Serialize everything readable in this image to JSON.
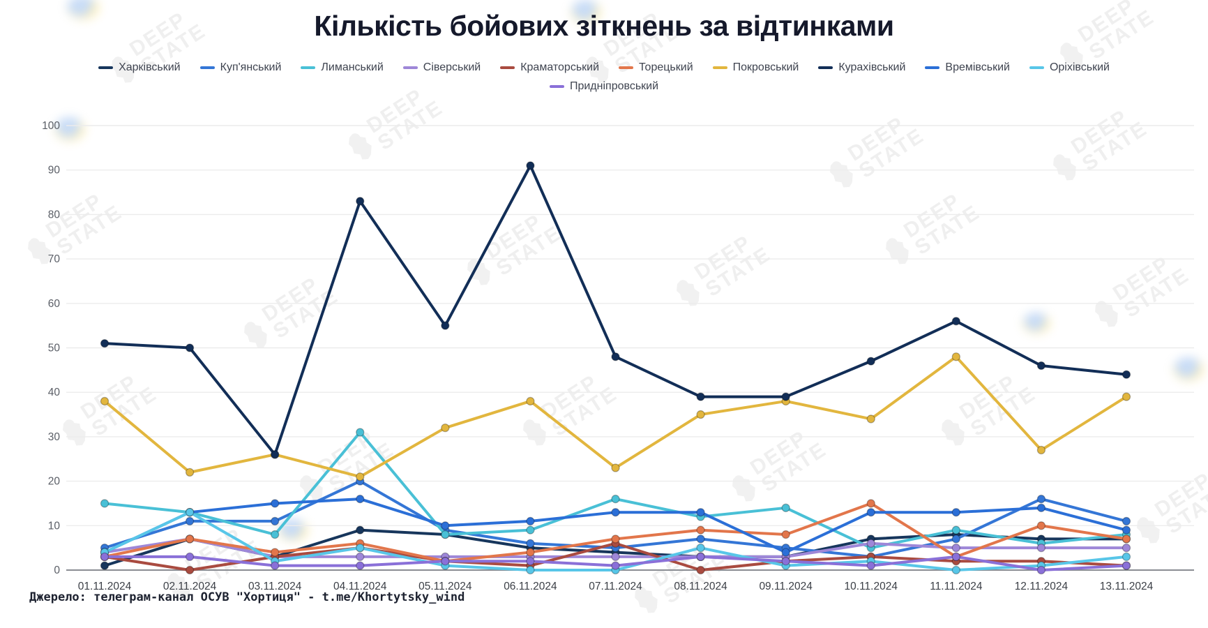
{
  "title": "Кількість бойових зіткнень за відтинками",
  "source": "Джерело: телеграм-канал ОСУВ \"Хортиця\" - t.me/Khortytsky_wind",
  "watermark": {
    "line1": "DEEP",
    "line2": "STATE"
  },
  "colors": {
    "axis": "#8a8d93",
    "grid": "#ececec",
    "ytick": "#5a5e66",
    "xtick": "#3b3f46"
  },
  "chart_data": {
    "type": "line",
    "title": "Кількість бойових зіткнень за відтинками",
    "xlabel": "",
    "ylabel": "",
    "ylim": [
      0,
      100
    ],
    "ytick_step": 10,
    "grid": true,
    "legend_position": "top",
    "x": [
      "01.11.2024",
      "02.11.2024",
      "03.11.2024",
      "04.11.2024",
      "05.11.2024",
      "06.11.2024",
      "07.11.2024",
      "08.11.2024",
      "09.11.2024",
      "10.11.2024",
      "11.11.2024",
      "12.11.2024",
      "13.11.2024"
    ],
    "series": [
      {
        "name": "Харківський",
        "color": "#17365c",
        "values": [
          1,
          7,
          3,
          9,
          8,
          5,
          4,
          3,
          3,
          7,
          8,
          7,
          7
        ]
      },
      {
        "name": "Куп'янський",
        "color": "#3476d6",
        "values": [
          5,
          11,
          11,
          20,
          9,
          6,
          5,
          7,
          5,
          3,
          7,
          16,
          11
        ]
      },
      {
        "name": "Лиманський",
        "color": "#49c0d6",
        "values": [
          15,
          13,
          8,
          31,
          8,
          9,
          16,
          12,
          14,
          5,
          9,
          6,
          8
        ]
      },
      {
        "name": "Сіверський",
        "color": "#9e87d8",
        "values": [
          4,
          7,
          3,
          3,
          3,
          3,
          3,
          3,
          3,
          6,
          5,
          5,
          5
        ]
      },
      {
        "name": "Краматорський",
        "color": "#a94b40",
        "values": [
          3,
          0,
          3,
          5,
          2,
          1,
          6,
          0,
          2,
          3,
          2,
          2,
          1
        ]
      },
      {
        "name": "Торецький",
        "color": "#e2764b",
        "values": [
          3,
          7,
          4,
          6,
          2,
          4,
          7,
          9,
          8,
          15,
          3,
          10,
          7
        ]
      },
      {
        "name": "Покровський",
        "color": "#e2b63e",
        "values": [
          38,
          22,
          26,
          21,
          32,
          38,
          23,
          35,
          38,
          34,
          48,
          27,
          39
        ]
      },
      {
        "name": "Курахівський",
        "color": "#122e57",
        "values": [
          51,
          50,
          26,
          83,
          55,
          91,
          48,
          39,
          39,
          47,
          56,
          46,
          44
        ]
      },
      {
        "name": "Времівський",
        "color": "#2b6fd7",
        "values": [
          4,
          13,
          15,
          16,
          10,
          11,
          13,
          13,
          4,
          13,
          13,
          14,
          9
        ]
      },
      {
        "name": "Оріхівський",
        "color": "#58c6e8",
        "values": [
          4,
          13,
          2,
          5,
          1,
          0,
          0,
          5,
          1,
          2,
          0,
          1,
          3
        ]
      },
      {
        "name": "Придніпровський",
        "color": "#8a70d8",
        "values": [
          3,
          3,
          1,
          1,
          2,
          2,
          1,
          3,
          2,
          1,
          3,
          0,
          1
        ]
      }
    ]
  }
}
